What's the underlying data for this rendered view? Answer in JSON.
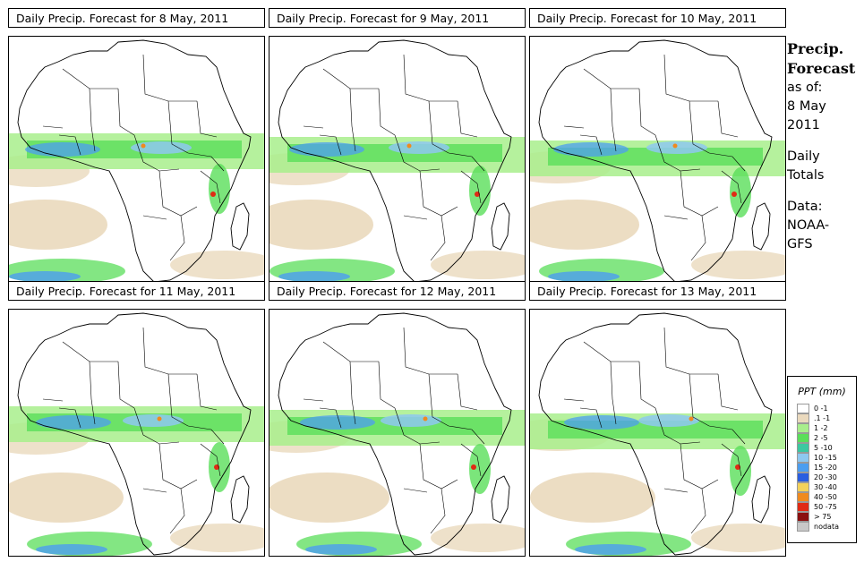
{
  "panels": [
    {
      "title": "Daily Precip. Forecast for  8 May, 2011"
    },
    {
      "title": "Daily Precip. Forecast for  9 May, 2011"
    },
    {
      "title": "Daily Precip. Forecast for  10 May, 2011"
    },
    {
      "title": "Daily Precip. Forecast for  11 May, 2011"
    },
    {
      "title": "Daily Precip. Forecast for  12 May, 2011"
    },
    {
      "title": "Daily Precip. Forecast for  13 May, 2011"
    }
  ],
  "side": {
    "title_line1": "Precip.",
    "title_line2": "Forecast",
    "asof_label": "as of:",
    "date_line1": "8 May",
    "date_line2": "2011",
    "totals_line1": "Daily",
    "totals_line2": "Totals",
    "source_line1": "Data:",
    "source_line2": "NOAA-",
    "source_line3": "GFS"
  },
  "legend": {
    "title": "PPT (mm)",
    "items": [
      {
        "label": "0 -1",
        "color": "#ffffff"
      },
      {
        "label": ".1 -1",
        "color": "#ead9bd"
      },
      {
        "label": "1 -2",
        "color": "#a8ee8c"
      },
      {
        "label": "2 -5",
        "color": "#5ade5a"
      },
      {
        "label": "5 -10",
        "color": "#3cc8a0"
      },
      {
        "label": "10 -15",
        "color": "#8ec8f0"
      },
      {
        "label": "15 -20",
        "color": "#4c9ef0"
      },
      {
        "label": "20 -30",
        "color": "#2a5ee0"
      },
      {
        "label": "30 -40",
        "color": "#f4d25a"
      },
      {
        "label": "40 -50",
        "color": "#f08a1e"
      },
      {
        "label": "50 -75",
        "color": "#e02a14"
      },
      {
        "label": "> 75",
        "color": "#8a0f0f"
      },
      {
        "label": "nodata",
        "color": "#c8c8c8"
      }
    ]
  },
  "colors": {
    "tan": "#ead9bd",
    "green": "#5ade5a",
    "light_green": "#a8ee8c",
    "blue": "#4c9ef0",
    "light_blue": "#8ec8f0",
    "red": "#e02a14",
    "orange": "#f08a1e"
  }
}
